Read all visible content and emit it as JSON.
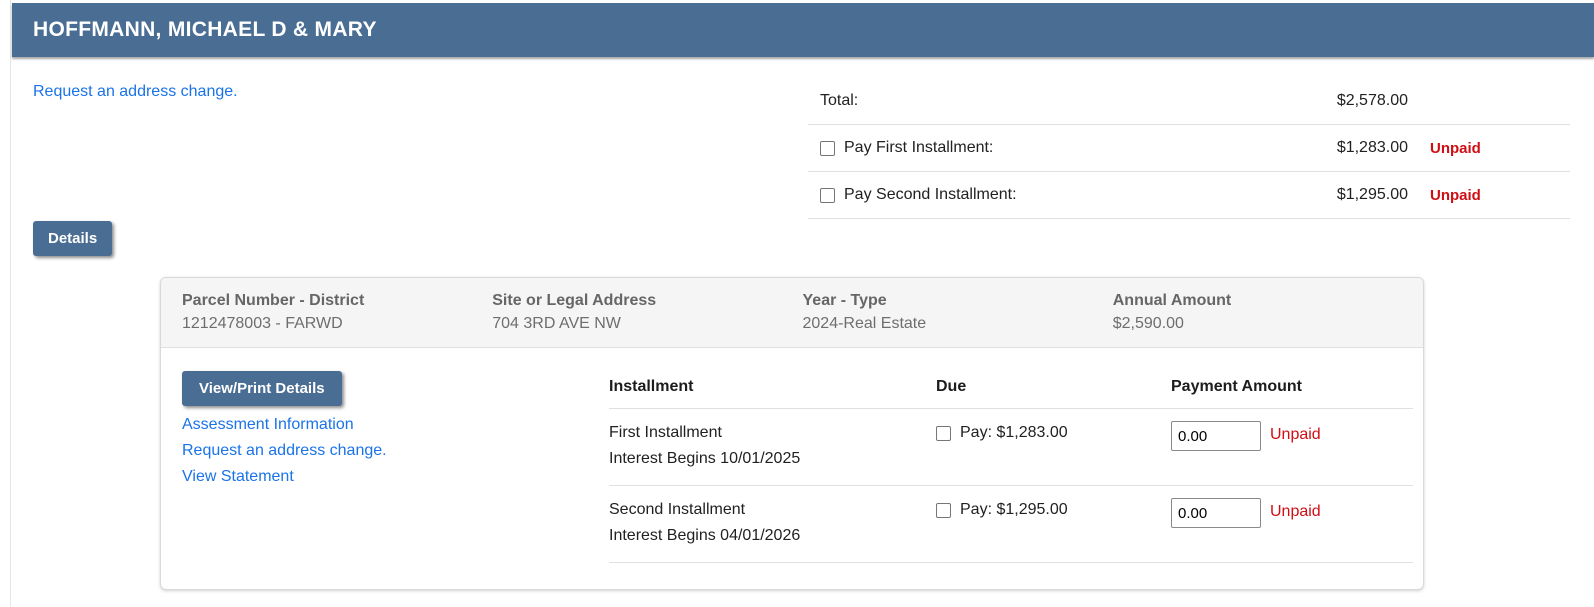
{
  "colors": {
    "header_bg": "#4a6d94",
    "link_blue": "#1a73e8",
    "unpaid_red": "#d00e14",
    "summary_bg": "#f5f5f5"
  },
  "header": {
    "title": "HOFFMANN, MICHAEL D & MARY"
  },
  "top_link": {
    "label": "Request an address change."
  },
  "totals": {
    "rows": [
      {
        "label": "Total:",
        "amount": "$2,578.00",
        "has_checkbox": false,
        "status": ""
      },
      {
        "label": "Pay First Installment:",
        "amount": "$1,283.00",
        "has_checkbox": true,
        "status": "Unpaid"
      },
      {
        "label": "Pay Second Installment:",
        "amount": "$1,295.00",
        "has_checkbox": true,
        "status": "Unpaid"
      }
    ]
  },
  "details_button": {
    "label": "Details"
  },
  "card": {
    "summary": [
      {
        "label": "Parcel Number - District",
        "value": "1212478003 - FARWD"
      },
      {
        "label": "Site or Legal Address",
        "value": "704 3RD AVE NW"
      },
      {
        "label": "Year - Type",
        "value": "2024-Real Estate"
      },
      {
        "label": "Annual Amount",
        "value": "$2,590.00"
      }
    ],
    "view_print_button": {
      "label": "View/Print Details"
    },
    "links": [
      {
        "label": "Assessment Information"
      },
      {
        "label": "Request an address change."
      },
      {
        "label": "View Statement"
      }
    ],
    "table": {
      "headers": {
        "installment": "Installment",
        "due": "Due",
        "payment_amount": "Payment Amount"
      },
      "rows": [
        {
          "name": "First Installment",
          "interest": "Interest Begins 10/01/2025",
          "pay_label": "Pay: $1,283.00",
          "amount_value": "0.00",
          "status": "Unpaid"
        },
        {
          "name": "Second Installment",
          "interest": "Interest Begins 04/01/2026",
          "pay_label": "Pay: $1,295.00",
          "amount_value": "0.00",
          "status": "Unpaid"
        }
      ]
    }
  }
}
